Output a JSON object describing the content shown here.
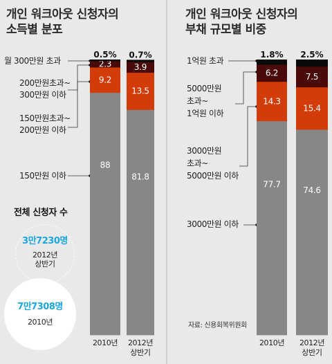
{
  "left": {
    "title_line1": "개인 워크아웃 신청자의",
    "title_line2": "소득별 분포",
    "legend": [
      "월 300만원 초과",
      "200만원초과~",
      "300만원 이하",
      "150만원초과~",
      "200만원 이하",
      "150만원 이하"
    ],
    "summary_title": "전체 신청자 수",
    "bubble_2012_value": "3만7230명",
    "bubble_2012_label1": "2012년",
    "bubble_2012_label2": "상반기",
    "bubble_2010_value": "7만7308명",
    "bubble_2010_label": "2010년"
  },
  "right": {
    "title_line1": "개인 워크아웃 신청자의",
    "title_line2": "부채 규모별 비중",
    "legend": [
      "1억원 초과",
      "5000만원",
      "초과~",
      "1억원 이하",
      "3000만원",
      "초과~",
      "5000만원 이하",
      "3000만원 이하"
    ],
    "source": "자료: 신용회복위원회"
  },
  "chart_data": [
    {
      "type": "bar",
      "stacked": true,
      "title": "개인 워크아웃 신청자의 소득별 분포",
      "categories": [
        "2010년",
        "2012년 상반기"
      ],
      "category_lines": [
        [
          "2010년"
        ],
        [
          "2012년",
          "상반기"
        ]
      ],
      "series": [
        {
          "name": "150만원 이하",
          "values": [
            88,
            81.8
          ],
          "labels": [
            "88",
            "81.8"
          ],
          "color": "#878787"
        },
        {
          "name": "150만원초과~200만원 이하",
          "values": [
            9.2,
            13.5
          ],
          "labels": [
            "9.2",
            "13.5"
          ],
          "color": "#d23c08"
        },
        {
          "name": "200만원초과~300만원 이하",
          "values": [
            2.3,
            3.9
          ],
          "labels": [
            "2.3",
            "3.9"
          ],
          "color": "#4a0a0a"
        },
        {
          "name": "월 300만원 초과",
          "values": [
            0.5,
            0.7
          ],
          "labels": [
            "0.5%",
            "0.7%"
          ],
          "color": "#0a0a0a"
        }
      ],
      "ylim": [
        0,
        100
      ]
    },
    {
      "type": "bar",
      "stacked": true,
      "title": "개인 워크아웃 신청자의 부채 규모별 비중",
      "categories": [
        "2010년",
        "2012년 상반기"
      ],
      "category_lines": [
        [
          "2010년"
        ],
        [
          "2012년",
          "상반기"
        ]
      ],
      "series": [
        {
          "name": "3000만원 이하",
          "values": [
            77.7,
            74.6
          ],
          "labels": [
            "77.7",
            "74.6"
          ],
          "color": "#878787"
        },
        {
          "name": "3000만원 초과~5000만원 이하",
          "values": [
            14.3,
            15.4
          ],
          "labels": [
            "14.3",
            "15.4"
          ],
          "color": "#d23c08"
        },
        {
          "name": "5000만원 초과~1억원 이하",
          "values": [
            6.2,
            7.5
          ],
          "labels": [
            "6.2",
            "7.5"
          ],
          "color": "#4a0a0a"
        },
        {
          "name": "1억원 초과",
          "values": [
            1.8,
            2.5
          ],
          "labels": [
            "1.8%",
            "2.5%"
          ],
          "color": "#0a0a0a"
        }
      ],
      "ylim": [
        0,
        100
      ]
    }
  ]
}
